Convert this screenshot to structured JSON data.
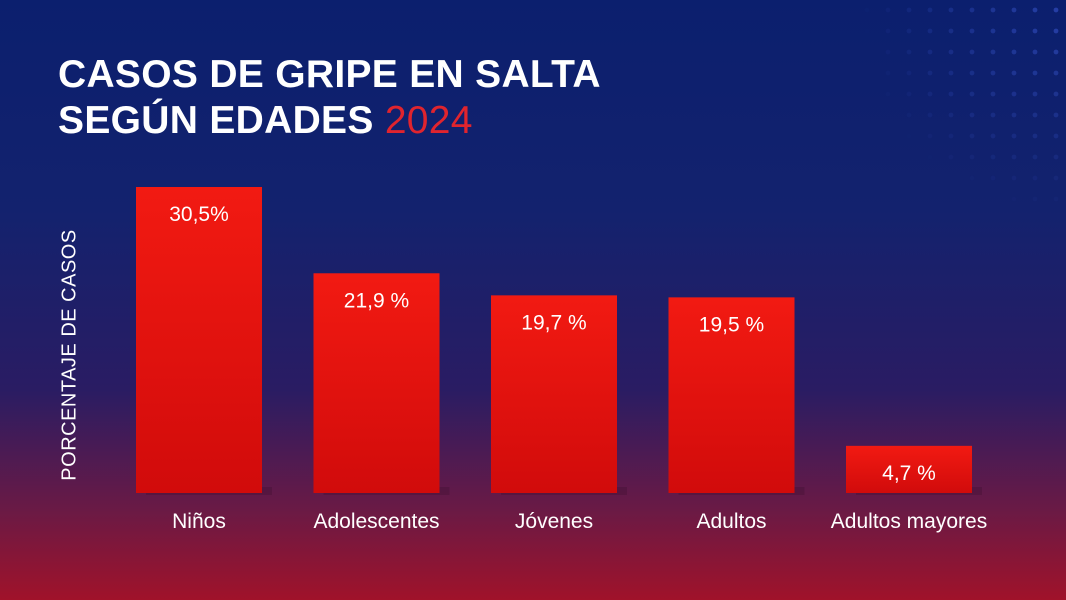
{
  "title": {
    "line1": "CASOS DE GRIPE EN SALTA",
    "line2": "SEGÚN EDADES",
    "year": "2024"
  },
  "colors": {
    "background_top": "#0b1f6e",
    "background_bottom": "#a0122a",
    "bar": "#e8140f",
    "accent": "#e0242e",
    "text": "#ffffff"
  },
  "chart_data": {
    "type": "bar",
    "ylabel": "PORCENTAJE DE CASOS",
    "xlabel": "",
    "categories": [
      "Niños",
      "Adolescentes",
      "Jóvenes",
      "Adultos",
      "Adultos mayores"
    ],
    "values": [
      30.5,
      21.9,
      19.7,
      19.5,
      4.7
    ],
    "data_labels": [
      "30,5%",
      "21,9 %",
      "19,7 %",
      "19,5 %",
      "4,7 %"
    ],
    "ylim": [
      0,
      30.5
    ],
    "grid": false,
    "legend": "none"
  }
}
